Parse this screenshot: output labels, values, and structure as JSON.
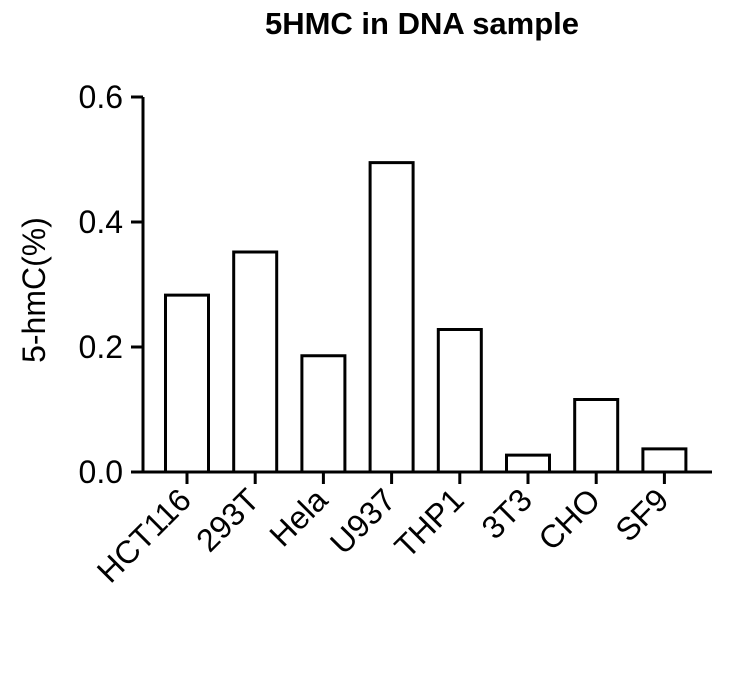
{
  "chart_data": {
    "type": "bar",
    "title": "5HMC in DNA sample",
    "xlabel": "",
    "ylabel": "5-hmC(%)",
    "categories": [
      "HCT116",
      "293T",
      "Hela",
      "U937",
      "THP1",
      "3T3",
      "CHO",
      "SF9"
    ],
    "values": [
      0.283,
      0.352,
      0.186,
      0.495,
      0.228,
      0.027,
      0.116,
      0.037
    ],
    "ylim": [
      0,
      0.6
    ],
    "yticks": [
      "0.0",
      "0.2",
      "0.4",
      "0.6"
    ],
    "ytick_values": [
      0,
      0.2,
      0.4,
      0.6
    ],
    "grid": false,
    "bar_fill": "#ffffff",
    "bar_stroke": "#000000"
  }
}
